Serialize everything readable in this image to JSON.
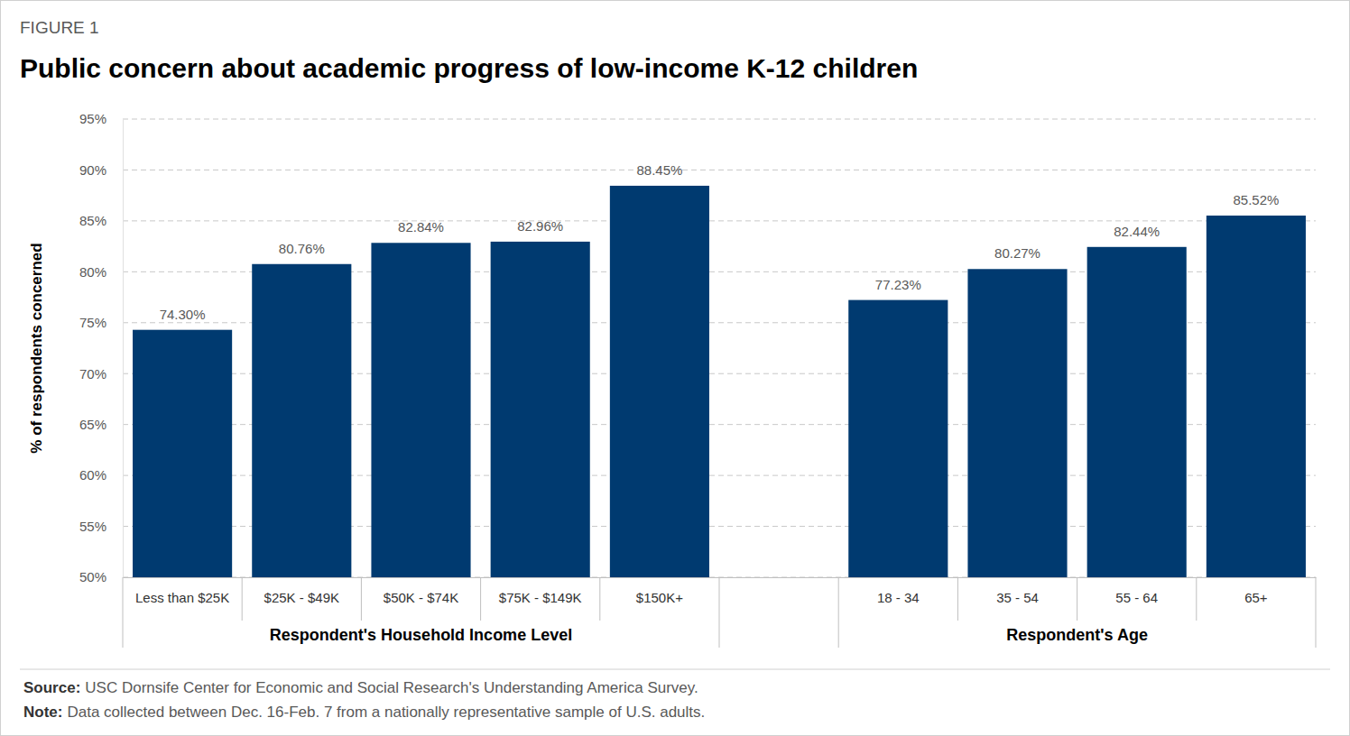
{
  "chart_data": {
    "type": "bar",
    "figure_label": "FIGURE 1",
    "title": "Public concern about academic progress of low-income K-12 children",
    "ylabel": "% of respondents concerned",
    "color": "#003a70",
    "grid": true,
    "data_labels": true,
    "ylim": [
      50,
      95
    ],
    "yticks": [
      {
        "value": 50,
        "label": "50%"
      },
      {
        "value": 55,
        "label": "55%"
      },
      {
        "value": 60,
        "label": "60%"
      },
      {
        "value": 65,
        "label": "65%"
      },
      {
        "value": 70,
        "label": "70%"
      },
      {
        "value": 75,
        "label": "75%"
      },
      {
        "value": 80,
        "label": "80%"
      },
      {
        "value": 85,
        "label": "85%"
      },
      {
        "value": 90,
        "label": "90%"
      },
      {
        "value": 95,
        "label": "95%"
      }
    ],
    "groups": [
      {
        "label": "Respondent's Household Income Level",
        "categories": [
          "Less than $25K",
          "$25K - $49K",
          "$50K - $74K",
          "$75K - $149K",
          "$150K+"
        ],
        "values": [
          74.3,
          80.76,
          82.84,
          82.96,
          88.45
        ],
        "value_labels": [
          "74.30%",
          "80.76%",
          "82.84%",
          "82.96%",
          "88.45%"
        ]
      },
      {
        "label": "Respondent's Age",
        "categories": [
          "18 - 34",
          "35 - 54",
          "55 - 64",
          "65+"
        ],
        "values": [
          77.23,
          80.27,
          82.44,
          85.52
        ],
        "value_labels": [
          "77.23%",
          "80.27%",
          "82.44%",
          "85.52%"
        ]
      }
    ],
    "notes": [
      {
        "label": "Source:",
        "text": "USC Dornsife Center for Economic and Social Research's Understanding America Survey."
      },
      {
        "label": "Note:",
        "text": "Data collected between Dec. 16-Feb. 7 from a nationally representative sample of U.S. adults."
      }
    ]
  }
}
